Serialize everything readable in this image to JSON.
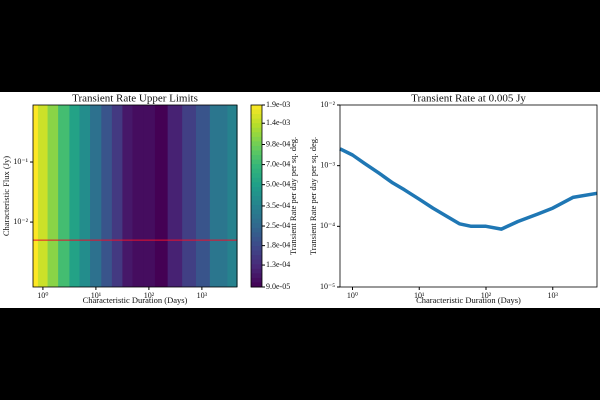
{
  "chart_data": [
    {
      "type": "heatmap",
      "title": "Transient Rate Upper Limits",
      "xlabel": "Characteristic Duration (Days)",
      "ylabel": "Characteristic Flux (Jy)",
      "log_x": true,
      "log_y": true,
      "xlim": [
        0.65,
        4600
      ],
      "ylim": [
        0.00083,
        0.89
      ],
      "xticks": [
        {
          "value": 1,
          "label": "10⁰"
        },
        {
          "value": 10,
          "label": "10¹"
        },
        {
          "value": 100,
          "label": "10²"
        },
        {
          "value": 1000,
          "label": "10³"
        }
      ],
      "yticks": [
        {
          "value": 0.1,
          "label": "10⁻¹"
        },
        {
          "value": 0.01,
          "label": "10⁻²"
        }
      ],
      "x": [
        0.65,
        1,
        1.5,
        2.5,
        4,
        6,
        10,
        16,
        25,
        40,
        60,
        100,
        170,
        300,
        600,
        1000,
        2000,
        4600
      ],
      "values": [
        0.0019,
        0.0015,
        0.0011,
        0.00075,
        0.00052,
        0.0004,
        0.00028,
        0.0002,
        0.00015,
        0.00011,
        0.0001,
        0.0001,
        9e-05,
        0.00012,
        0.00016,
        0.0002,
        0.0003,
        0.00035
      ],
      "colormap": "viridis",
      "hline": {
        "value": 0.005,
        "color": "#e8112d"
      },
      "colorbar": {
        "label": "Transient Rate per day per sq. deg.",
        "log": true,
        "lim": [
          9e-05,
          0.0019
        ],
        "ticks": [
          {
            "value": 0.0019,
            "label": "1.9e-03"
          },
          {
            "value": 0.0014,
            "label": "1.4e-03"
          },
          {
            "value": 0.00098,
            "label": "9.8e-04"
          },
          {
            "value": 0.0007,
            "label": "7.0e-04"
          },
          {
            "value": 0.0005,
            "label": "5.0e-04"
          },
          {
            "value": 0.00035,
            "label": "3.5e-04"
          },
          {
            "value": 0.00025,
            "label": "2.5e-04"
          },
          {
            "value": 0.00018,
            "label": "1.8e-04"
          },
          {
            "value": 0.00013,
            "label": "1.3e-04"
          },
          {
            "value": 9e-05,
            "label": "9.0e-05"
          }
        ]
      }
    },
    {
      "type": "line",
      "title": "Transient Rate at 0.005 Jy",
      "xlabel": "Characteristic Duration (Days)",
      "ylabel": "Transient Rate per day per sq. deg.",
      "log_x": true,
      "log_y": true,
      "xlim": [
        0.65,
        4600
      ],
      "ylim": [
        1e-05,
        0.01
      ],
      "xticks": [
        {
          "value": 1,
          "label": "10⁰"
        },
        {
          "value": 10,
          "label": "10¹"
        },
        {
          "value": 100,
          "label": "10²"
        },
        {
          "value": 1000,
          "label": "10³"
        }
      ],
      "yticks": [
        {
          "value": 0.01,
          "label": "10⁻²"
        },
        {
          "value": 0.001,
          "label": "10⁻³"
        },
        {
          "value": 0.0001,
          "label": "10⁻⁴"
        },
        {
          "value": 1e-05,
          "label": "10⁻⁵"
        }
      ],
      "x": [
        0.65,
        1,
        1.5,
        2.5,
        4,
        6,
        10,
        16,
        25,
        40,
        60,
        100,
        170,
        300,
        600,
        1000,
        2000,
        4600
      ],
      "values": [
        0.0019,
        0.0015,
        0.0011,
        0.00075,
        0.00052,
        0.0004,
        0.00028,
        0.0002,
        0.00015,
        0.00011,
        0.0001,
        0.0001,
        9e-05,
        0.00012,
        0.00016,
        0.0002,
        0.0003,
        0.00035
      ],
      "color": "#1f77b4"
    }
  ]
}
